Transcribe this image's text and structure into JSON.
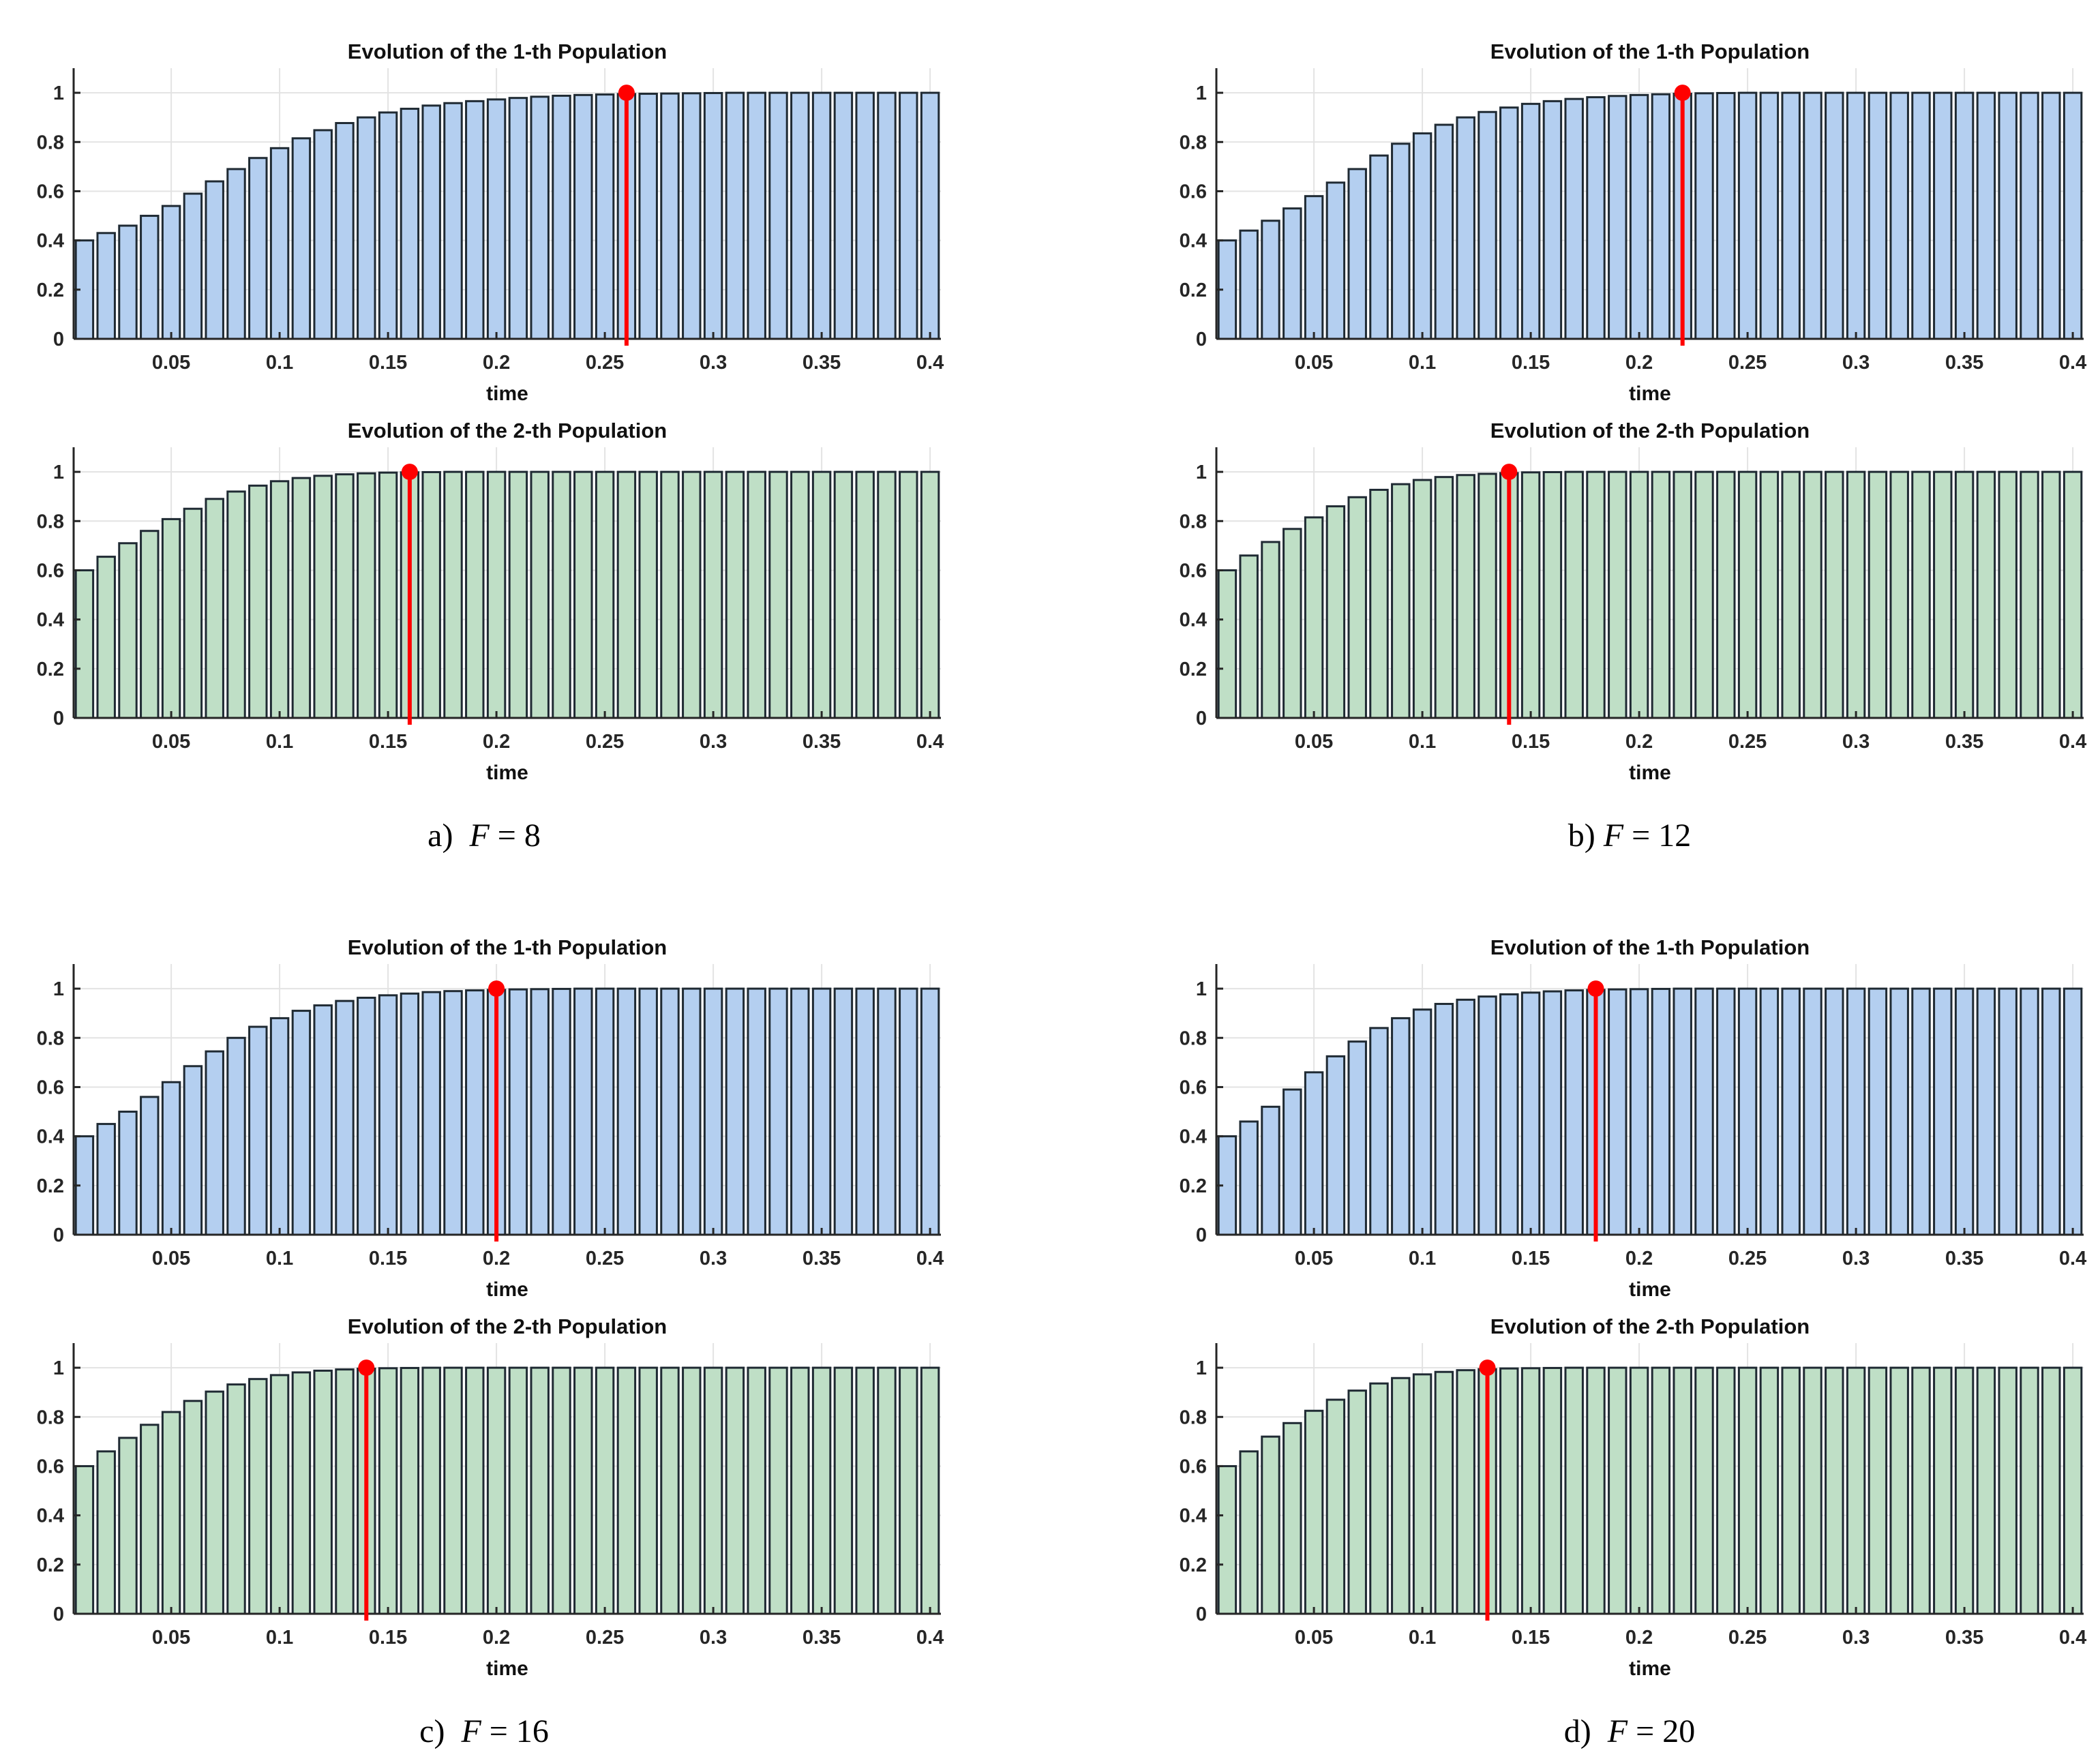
{
  "colors": {
    "population_1_bar": "#b4cff0",
    "population_2_bar": "#bfdfc6",
    "bar_edge": "#1f2a33",
    "marker": "#ff0000",
    "grid": "#e3e3e3",
    "axis": "#262626"
  },
  "panels": [
    {
      "letter": "a)",
      "symbol": "F",
      "equals": "=",
      "value": "8"
    },
    {
      "letter": "b)",
      "symbol": "F",
      "equals": "=",
      "value": "12"
    },
    {
      "letter": "c)",
      "symbol": "F",
      "equals": "=",
      "value": "16"
    },
    {
      "letter": "d)",
      "symbol": "F",
      "equals": "=",
      "value": "20"
    }
  ],
  "chart_data": [
    {
      "type": "bar",
      "panel": "a",
      "title": "Evolution of the 1-th Population",
      "xlabel": "time",
      "ylabel": "",
      "xlim": [
        0.005,
        0.405
      ],
      "ylim": [
        0,
        1.1
      ],
      "grid": true,
      "xticks": [
        "0.05",
        "0.1",
        "0.15",
        "0.2",
        "0.25",
        "0.3",
        "0.35",
        "0.4"
      ],
      "yticks": [
        "0",
        "0.2",
        "0.4",
        "0.6",
        "0.8",
        "1"
      ],
      "x": [
        0.01,
        0.02,
        0.03,
        0.04,
        0.05,
        0.06,
        0.07,
        0.08,
        0.09,
        0.1,
        0.11,
        0.12,
        0.13,
        0.14,
        0.15,
        0.16,
        0.17,
        0.18,
        0.19,
        0.2,
        0.21,
        0.22,
        0.23,
        0.24,
        0.25,
        0.26,
        0.27,
        0.28,
        0.29,
        0.3,
        0.31,
        0.32,
        0.33,
        0.34,
        0.35,
        0.36,
        0.37,
        0.38,
        0.39,
        0.4
      ],
      "values": [
        0.4,
        0.43,
        0.46,
        0.5,
        0.54,
        0.59,
        0.64,
        0.69,
        0.735,
        0.775,
        0.815,
        0.848,
        0.877,
        0.9,
        0.92,
        0.935,
        0.948,
        0.958,
        0.966,
        0.973,
        0.979,
        0.984,
        0.988,
        0.991,
        0.993,
        0.995,
        0.996,
        0.997,
        0.998,
        0.999,
        1,
        1,
        1,
        1,
        1,
        1,
        1,
        1,
        1,
        1
      ],
      "marker": {
        "x": 0.26,
        "y": 1.0
      }
    },
    {
      "type": "bar",
      "panel": "a",
      "title": "Evolution of the 2-th Population",
      "xlabel": "time",
      "ylabel": "",
      "xlim": [
        0.005,
        0.405
      ],
      "ylim": [
        0,
        1.1
      ],
      "grid": true,
      "xticks": [
        "0.05",
        "0.1",
        "0.15",
        "0.2",
        "0.25",
        "0.3",
        "0.35",
        "0.4"
      ],
      "yticks": [
        "0",
        "0.2",
        "0.4",
        "0.6",
        "0.8",
        "1"
      ],
      "x": [
        0.01,
        0.02,
        0.03,
        0.04,
        0.05,
        0.06,
        0.07,
        0.08,
        0.09,
        0.1,
        0.11,
        0.12,
        0.13,
        0.14,
        0.15,
        0.16,
        0.17,
        0.18,
        0.19,
        0.2,
        0.21,
        0.22,
        0.23,
        0.24,
        0.25,
        0.26,
        0.27,
        0.28,
        0.29,
        0.3,
        0.31,
        0.32,
        0.33,
        0.34,
        0.35,
        0.36,
        0.37,
        0.38,
        0.39,
        0.4
      ],
      "values": [
        0.6,
        0.655,
        0.71,
        0.76,
        0.808,
        0.85,
        0.89,
        0.92,
        0.944,
        0.962,
        0.975,
        0.984,
        0.99,
        0.994,
        0.997,
        0.998,
        0.999,
        1,
        1,
        1,
        1,
        1,
        1,
        1,
        1,
        1,
        1,
        1,
        1,
        1,
        1,
        1,
        1,
        1,
        1,
        1,
        1,
        1,
        1,
        1
      ],
      "marker": {
        "x": 0.16,
        "y": 1.0
      }
    },
    {
      "type": "bar",
      "panel": "b",
      "title": "Evolution of the 1-th Population",
      "xlabel": "time",
      "ylabel": "",
      "xlim": [
        0.005,
        0.405
      ],
      "ylim": [
        0,
        1.1
      ],
      "grid": true,
      "xticks": [
        "0.05",
        "0.1",
        "0.15",
        "0.2",
        "0.25",
        "0.3",
        "0.35",
        "0.4"
      ],
      "yticks": [
        "0",
        "0.2",
        "0.4",
        "0.6",
        "0.8",
        "1"
      ],
      "x": [
        0.01,
        0.02,
        0.03,
        0.04,
        0.05,
        0.06,
        0.07,
        0.08,
        0.09,
        0.1,
        0.11,
        0.12,
        0.13,
        0.14,
        0.15,
        0.16,
        0.17,
        0.18,
        0.19,
        0.2,
        0.21,
        0.22,
        0.23,
        0.24,
        0.25,
        0.26,
        0.27,
        0.28,
        0.29,
        0.3,
        0.31,
        0.32,
        0.33,
        0.34,
        0.35,
        0.36,
        0.37,
        0.38,
        0.39,
        0.4
      ],
      "values": [
        0.4,
        0.44,
        0.48,
        0.53,
        0.58,
        0.635,
        0.69,
        0.745,
        0.793,
        0.835,
        0.87,
        0.9,
        0.922,
        0.94,
        0.955,
        0.966,
        0.975,
        0.982,
        0.987,
        0.991,
        0.994,
        0.996,
        0.998,
        0.999,
        1,
        1,
        1,
        1,
        1,
        1,
        1,
        1,
        1,
        1,
        1,
        1,
        1,
        1,
        1,
        1
      ],
      "marker": {
        "x": 0.22,
        "y": 1.0
      }
    },
    {
      "type": "bar",
      "panel": "b",
      "title": "Evolution of the 2-th Population",
      "xlabel": "time",
      "ylabel": "",
      "xlim": [
        0.005,
        0.405
      ],
      "ylim": [
        0,
        1.1
      ],
      "grid": true,
      "xticks": [
        "0.05",
        "0.1",
        "0.15",
        "0.2",
        "0.25",
        "0.3",
        "0.35",
        "0.4"
      ],
      "yticks": [
        "0",
        "0.2",
        "0.4",
        "0.6",
        "0.8",
        "1"
      ],
      "x": [
        0.01,
        0.02,
        0.03,
        0.04,
        0.05,
        0.06,
        0.07,
        0.08,
        0.09,
        0.1,
        0.11,
        0.12,
        0.13,
        0.14,
        0.15,
        0.16,
        0.17,
        0.18,
        0.19,
        0.2,
        0.21,
        0.22,
        0.23,
        0.24,
        0.25,
        0.26,
        0.27,
        0.28,
        0.29,
        0.3,
        0.31,
        0.32,
        0.33,
        0.34,
        0.35,
        0.36,
        0.37,
        0.38,
        0.39,
        0.4
      ],
      "values": [
        0.6,
        0.66,
        0.715,
        0.768,
        0.815,
        0.86,
        0.897,
        0.927,
        0.95,
        0.967,
        0.979,
        0.987,
        0.992,
        0.995,
        0.998,
        0.999,
        1,
        1,
        1,
        1,
        1,
        1,
        1,
        1,
        1,
        1,
        1,
        1,
        1,
        1,
        1,
        1,
        1,
        1,
        1,
        1,
        1,
        1,
        1,
        1
      ],
      "marker": {
        "x": 0.14,
        "y": 1.0
      }
    },
    {
      "type": "bar",
      "panel": "c",
      "title": "Evolution of the 1-th Population",
      "xlabel": "time",
      "ylabel": "",
      "xlim": [
        0.005,
        0.405
      ],
      "ylim": [
        0,
        1.1
      ],
      "grid": true,
      "xticks": [
        "0.05",
        "0.1",
        "0.15",
        "0.2",
        "0.25",
        "0.3",
        "0.35",
        "0.4"
      ],
      "yticks": [
        "0",
        "0.2",
        "0.4",
        "0.6",
        "0.8",
        "1"
      ],
      "x": [
        0.01,
        0.02,
        0.03,
        0.04,
        0.05,
        0.06,
        0.07,
        0.08,
        0.09,
        0.1,
        0.11,
        0.12,
        0.13,
        0.14,
        0.15,
        0.16,
        0.17,
        0.18,
        0.19,
        0.2,
        0.21,
        0.22,
        0.23,
        0.24,
        0.25,
        0.26,
        0.27,
        0.28,
        0.29,
        0.3,
        0.31,
        0.32,
        0.33,
        0.34,
        0.35,
        0.36,
        0.37,
        0.38,
        0.39,
        0.4
      ],
      "values": [
        0.4,
        0.45,
        0.5,
        0.56,
        0.62,
        0.685,
        0.745,
        0.8,
        0.845,
        0.88,
        0.91,
        0.932,
        0.95,
        0.963,
        0.973,
        0.98,
        0.986,
        0.99,
        0.993,
        0.995,
        0.997,
        0.998,
        0.999,
        1,
        1,
        1,
        1,
        1,
        1,
        1,
        1,
        1,
        1,
        1,
        1,
        1,
        1,
        1,
        1,
        1
      ],
      "marker": {
        "x": 0.2,
        "y": 1.0
      }
    },
    {
      "type": "bar",
      "panel": "c",
      "title": "Evolution of the 2-th Population",
      "xlabel": "time",
      "ylabel": "",
      "xlim": [
        0.005,
        0.405
      ],
      "ylim": [
        0,
        1.1
      ],
      "grid": true,
      "xticks": [
        "0.05",
        "0.1",
        "0.15",
        "0.2",
        "0.25",
        "0.3",
        "0.35",
        "0.4"
      ],
      "yticks": [
        "0",
        "0.2",
        "0.4",
        "0.6",
        "0.8",
        "1"
      ],
      "x": [
        0.01,
        0.02,
        0.03,
        0.04,
        0.05,
        0.06,
        0.07,
        0.08,
        0.09,
        0.1,
        0.11,
        0.12,
        0.13,
        0.14,
        0.15,
        0.16,
        0.17,
        0.18,
        0.19,
        0.2,
        0.21,
        0.22,
        0.23,
        0.24,
        0.25,
        0.26,
        0.27,
        0.28,
        0.29,
        0.3,
        0.31,
        0.32,
        0.33,
        0.34,
        0.35,
        0.36,
        0.37,
        0.38,
        0.39,
        0.4
      ],
      "values": [
        0.6,
        0.66,
        0.715,
        0.768,
        0.82,
        0.865,
        0.903,
        0.932,
        0.954,
        0.97,
        0.981,
        0.988,
        0.993,
        0.996,
        0.998,
        0.999,
        1,
        1,
        1,
        1,
        1,
        1,
        1,
        1,
        1,
        1,
        1,
        1,
        1,
        1,
        1,
        1,
        1,
        1,
        1,
        1,
        1,
        1,
        1,
        1
      ],
      "marker": {
        "x": 0.14,
        "y": 1.0
      }
    },
    {
      "type": "bar",
      "panel": "d",
      "title": "Evolution of the 1-th Population",
      "xlabel": "time",
      "ylabel": "",
      "xlim": [
        0.005,
        0.405
      ],
      "ylim": [
        0,
        1.1
      ],
      "grid": true,
      "xticks": [
        "0.05",
        "0.1",
        "0.15",
        "0.2",
        "0.25",
        "0.3",
        "0.35",
        "0.4"
      ],
      "yticks": [
        "0",
        "0.2",
        "0.4",
        "0.6",
        "0.8",
        "1"
      ],
      "x": [
        0.01,
        0.02,
        0.03,
        0.04,
        0.05,
        0.06,
        0.07,
        0.08,
        0.09,
        0.1,
        0.11,
        0.12,
        0.13,
        0.14,
        0.15,
        0.16,
        0.17,
        0.18,
        0.19,
        0.2,
        0.21,
        0.22,
        0.23,
        0.24,
        0.25,
        0.26,
        0.27,
        0.28,
        0.29,
        0.3,
        0.31,
        0.32,
        0.33,
        0.34,
        0.35,
        0.36,
        0.37,
        0.38,
        0.39,
        0.4
      ],
      "values": [
        0.4,
        0.46,
        0.52,
        0.59,
        0.66,
        0.725,
        0.785,
        0.84,
        0.88,
        0.915,
        0.938,
        0.955,
        0.968,
        0.977,
        0.984,
        0.989,
        0.993,
        0.995,
        0.997,
        0.998,
        0.999,
        1,
        1,
        1,
        1,
        1,
        1,
        1,
        1,
        1,
        1,
        1,
        1,
        1,
        1,
        1,
        1,
        1,
        1,
        1
      ],
      "marker": {
        "x": 0.18,
        "y": 1.0
      }
    },
    {
      "type": "bar",
      "panel": "d",
      "title": "Evolution of the 2-th Population",
      "xlabel": "time",
      "ylabel": "",
      "xlim": [
        0.005,
        0.405
      ],
      "ylim": [
        0,
        1.1
      ],
      "grid": true,
      "xticks": [
        "0.05",
        "0.1",
        "0.15",
        "0.2",
        "0.25",
        "0.3",
        "0.35",
        "0.4"
      ],
      "yticks": [
        "0",
        "0.2",
        "0.4",
        "0.6",
        "0.8",
        "1"
      ],
      "x": [
        0.01,
        0.02,
        0.03,
        0.04,
        0.05,
        0.06,
        0.07,
        0.08,
        0.09,
        0.1,
        0.11,
        0.12,
        0.13,
        0.14,
        0.15,
        0.16,
        0.17,
        0.18,
        0.19,
        0.2,
        0.21,
        0.22,
        0.23,
        0.24,
        0.25,
        0.26,
        0.27,
        0.28,
        0.29,
        0.3,
        0.31,
        0.32,
        0.33,
        0.34,
        0.35,
        0.36,
        0.37,
        0.38,
        0.39,
        0.4
      ],
      "values": [
        0.6,
        0.66,
        0.72,
        0.775,
        0.825,
        0.87,
        0.907,
        0.936,
        0.958,
        0.973,
        0.983,
        0.99,
        0.994,
        0.997,
        0.998,
        0.999,
        1,
        1,
        1,
        1,
        1,
        1,
        1,
        1,
        1,
        1,
        1,
        1,
        1,
        1,
        1,
        1,
        1,
        1,
        1,
        1,
        1,
        1,
        1,
        1
      ],
      "marker": {
        "x": 0.13,
        "y": 1.0
      }
    }
  ]
}
